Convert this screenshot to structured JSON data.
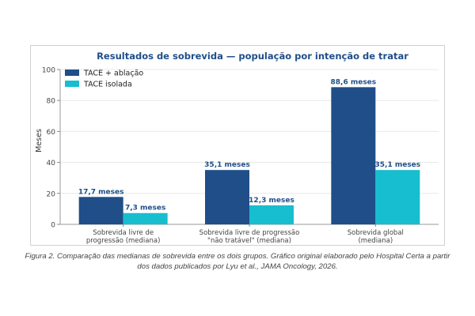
{
  "chart_data": {
    "type": "bar",
    "title": "Resultados de sobrevida — população por intenção de tratar",
    "xlabel": "",
    "ylabel": "Meses",
    "ylim": [
      0,
      100
    ],
    "yticks": [
      0,
      20,
      40,
      60,
      80,
      100
    ],
    "grid": "horizontal",
    "legend_position": "top-left",
    "categories": [
      [
        "Sobrevida livre de",
        "progressão (mediana)"
      ],
      [
        "Sobrevida livre de progressão",
        "\"não tratável\" (mediana)"
      ],
      [
        "Sobrevida global",
        "(mediana)"
      ]
    ],
    "series": [
      {
        "name": "TACE + ablação",
        "color": "#1f4e89",
        "values": [
          17.7,
          35.1,
          88.6
        ],
        "labels": [
          "17,7 meses",
          "35,1 meses",
          "88,6 meses"
        ]
      },
      {
        "name": "TACE isolada",
        "color": "#17becf",
        "values": [
          7.3,
          12.3,
          35.1
        ],
        "labels": [
          "7,3 meses",
          "12,3 meses",
          "35,1 meses"
        ]
      }
    ]
  },
  "caption": {
    "line1": "Figura 2. Comparação das medianas de sobrevida entre os dois grupos. Gráfico original elaborado pelo Hospital Certa a partir",
    "line2": "dos dados publicados por Lyu et al., JAMA Oncology, 2026."
  },
  "colors": {
    "title": "#1f4e89",
    "label_dark": "#1f4e89",
    "label_light": "#1f4e89",
    "axis_text": "#444444",
    "grid": "#e8e8e8"
  }
}
